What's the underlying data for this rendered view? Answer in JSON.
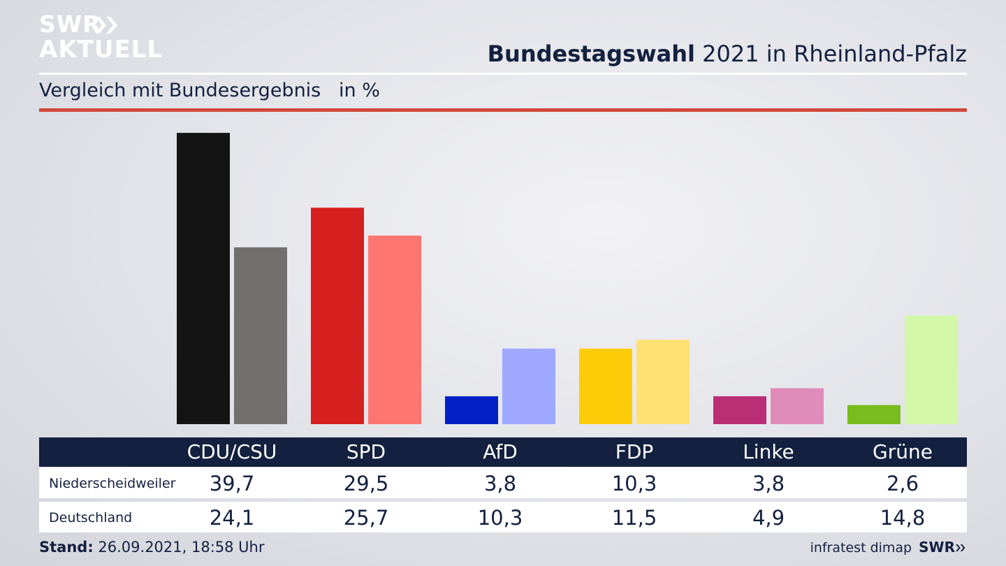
{
  "logo": {
    "line1": "SWR",
    "line2": "AKTUELL"
  },
  "header": {
    "title_bold": "Bundestagswahl",
    "title_rest": " 2021 in Rheinland-Pfalz"
  },
  "subtitle": "Vergleich mit Bundesergebnis   in %",
  "colors": {
    "navy": "#13203f",
    "red_rule": "#d0493a",
    "region": [
      "#141414",
      "#d61f1f",
      "#0320c7",
      "#ffcc0a",
      "#b92e74",
      "#78bd1d"
    ],
    "national": [
      "#72706e",
      "#ff7570",
      "#9fa9ff",
      "#ffe072",
      "#df8cbb",
      "#d2f7a9"
    ]
  },
  "chart_data": {
    "type": "bar",
    "categories": [
      "CDU/CSU",
      "SPD",
      "AfD",
      "FDP",
      "Linke",
      "Grüne"
    ],
    "series": [
      {
        "name": "Niederscheidweiler",
        "values": [
          39.7,
          29.5,
          3.8,
          10.3,
          3.8,
          2.6
        ]
      },
      {
        "name": "Deutschland",
        "values": [
          24.1,
          25.7,
          10.3,
          11.5,
          4.9,
          14.8
        ]
      }
    ],
    "ylim": [
      0,
      40
    ],
    "grid": false,
    "legend": "table below chart"
  },
  "table": {
    "rows": [
      {
        "label": "Niederscheidweiler",
        "values": [
          "39,7",
          "29,5",
          "3,8",
          "10,3",
          "3,8",
          "2,6"
        ]
      },
      {
        "label": "Deutschland",
        "values": [
          "24,1",
          "25,7",
          "10,3",
          "11,5",
          "4,9",
          "14,8"
        ]
      }
    ]
  },
  "footer": {
    "stand_label": "Stand:",
    "stand_value": " 26.09.2021, 18:58 Uhr",
    "source": "infratest dimap",
    "brand": "SWR"
  }
}
